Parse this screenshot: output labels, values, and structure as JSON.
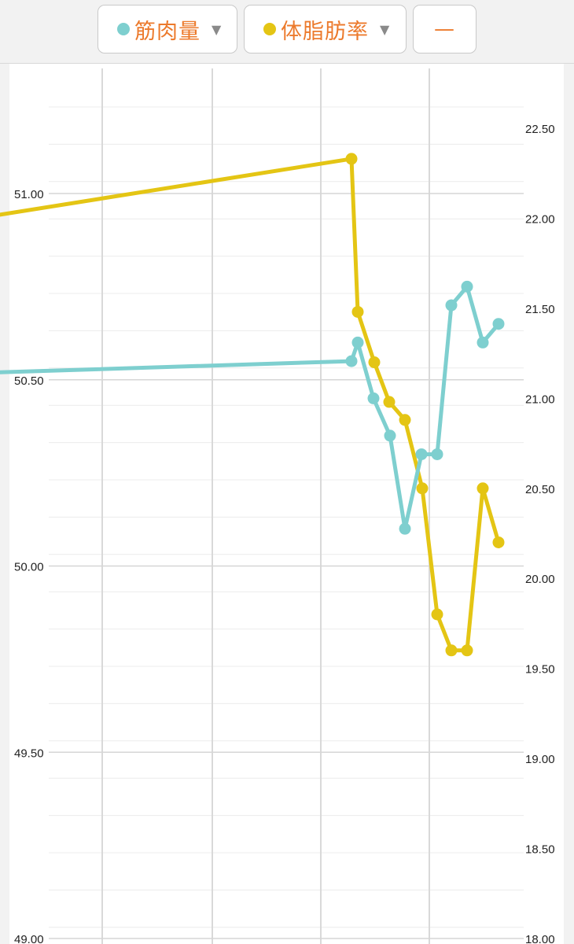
{
  "legend": {
    "muscle": {
      "label": "筋肉量",
      "color": "#7ecfcf",
      "icon": "chevron-down-icon",
      "caret": "▼"
    },
    "bodyfat": {
      "label": "体脂肪率",
      "color": "#e4c514",
      "icon": "chevron-down-icon",
      "caret": "▼"
    },
    "minus_label": "—"
  },
  "colors": {
    "accent": "#ec7a2c",
    "grid": "#dcdcdc"
  },
  "chart_data": {
    "type": "line",
    "left_axis": {
      "ticks": [
        "51.00",
        "50.50",
        "50.00",
        "49.50",
        "49.00"
      ],
      "ylim": [
        49.0,
        51.0
      ]
    },
    "right_axis": {
      "ticks": [
        "22.50",
        "22.00",
        "21.50",
        "21.00",
        "20.50",
        "20.00",
        "19.50",
        "19.00",
        "18.50",
        "18.00"
      ],
      "ylim": [
        18.0,
        22.5
      ]
    },
    "series": [
      {
        "name": "筋肉量",
        "axis": "left",
        "color": "#7ecfcf",
        "points": [
          {
            "x": 0,
            "y": 50.52,
            "marker": false
          },
          {
            "x": 447,
            "y": 50.55
          },
          {
            "x": 455,
            "y": 50.6
          },
          {
            "x": 475,
            "y": 50.45
          },
          {
            "x": 496,
            "y": 50.35
          },
          {
            "x": 515,
            "y": 50.1
          },
          {
            "x": 536,
            "y": 50.3
          },
          {
            "x": 556,
            "y": 50.3
          },
          {
            "x": 574,
            "y": 50.7
          },
          {
            "x": 594,
            "y": 50.75
          },
          {
            "x": 614,
            "y": 50.6
          },
          {
            "x": 634,
            "y": 50.65
          }
        ]
      },
      {
        "name": "体脂肪率",
        "axis": "right",
        "color": "#e4c514",
        "points": [
          {
            "x": 0,
            "y": 22.02,
            "marker": false
          },
          {
            "x": 447,
            "y": 22.33
          },
          {
            "x": 455,
            "y": 21.48
          },
          {
            "x": 476,
            "y": 21.2
          },
          {
            "x": 495,
            "y": 20.98
          },
          {
            "x": 515,
            "y": 20.88
          },
          {
            "x": 537,
            "y": 20.5
          },
          {
            "x": 556,
            "y": 19.8
          },
          {
            "x": 574,
            "y": 19.6
          },
          {
            "x": 594,
            "y": 19.6
          },
          {
            "x": 614,
            "y": 20.5
          },
          {
            "x": 634,
            "y": 20.2
          }
        ]
      }
    ]
  }
}
